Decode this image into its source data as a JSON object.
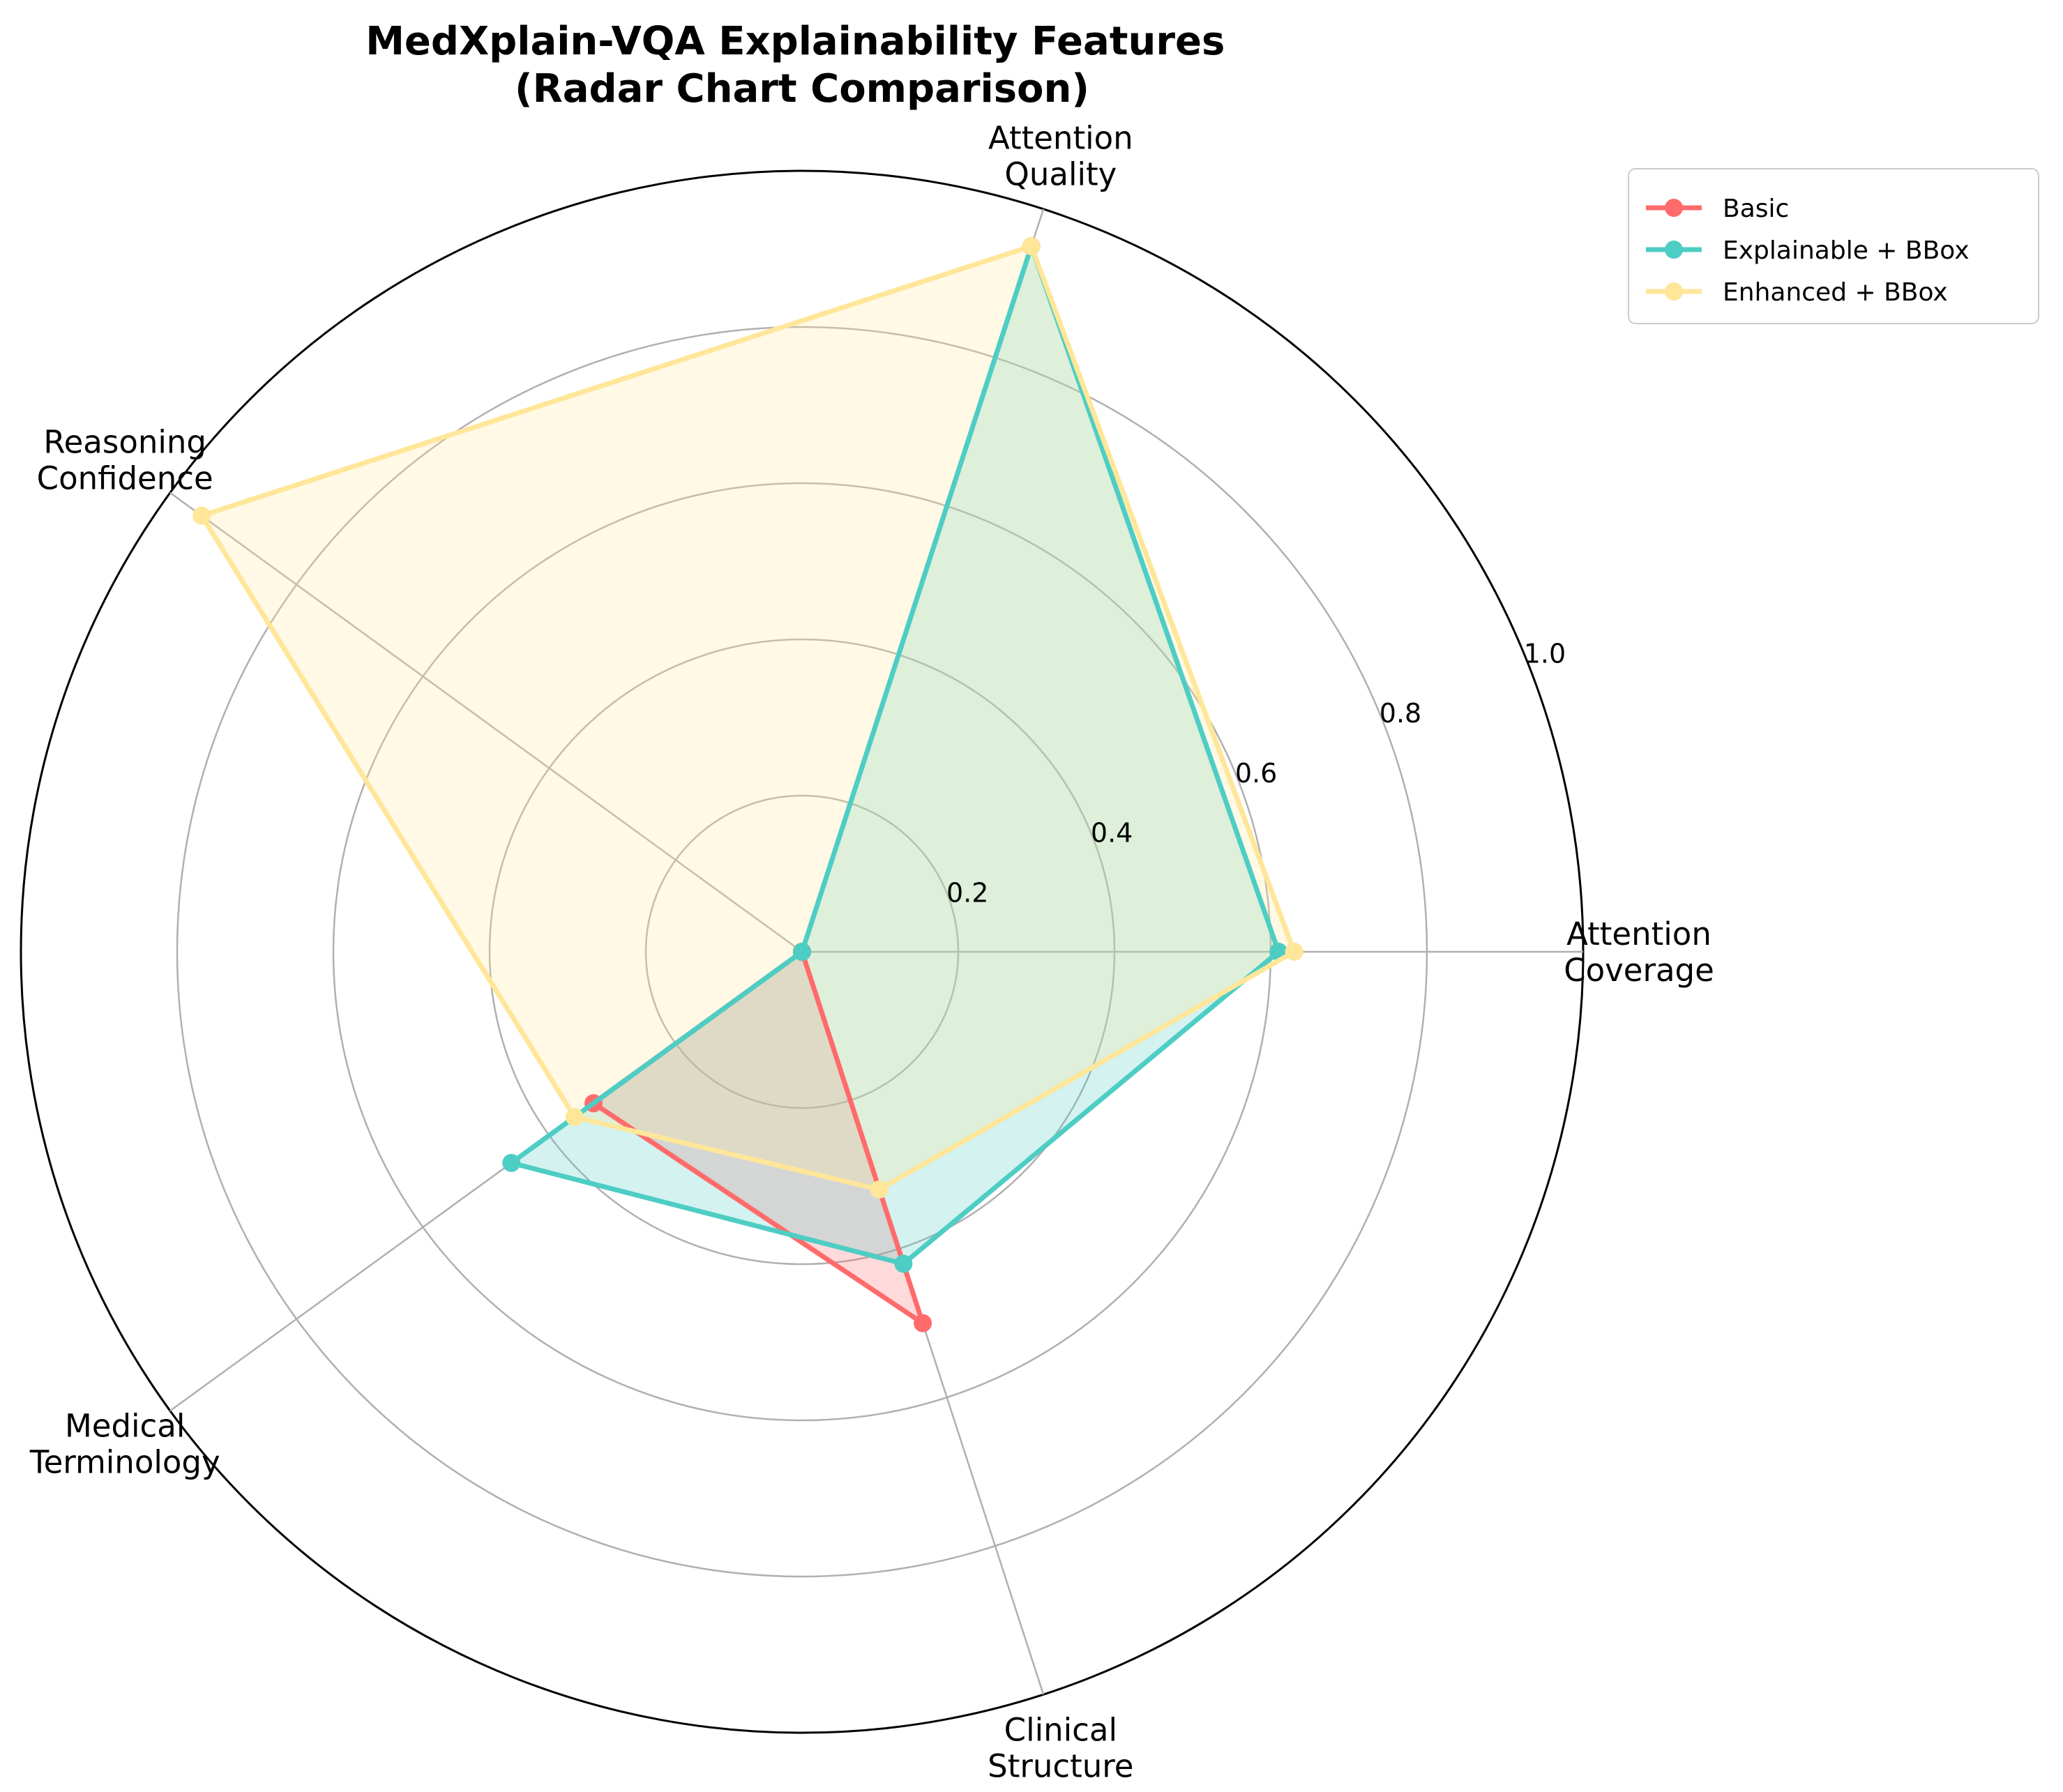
{
  "chart_data": {
    "type": "radar",
    "title": "MedXplain-VQA Explainability Features\n(Radar Chart Comparison)",
    "axes": [
      "Attention\nCoverage",
      "Attention\nQuality",
      "Reasoning\nConfidence",
      "Medical\nTerminology",
      "Clinical\nStructure"
    ],
    "rlim": [
      0,
      1.0
    ],
    "radial_ticks": [
      "0.2",
      "0.4",
      "0.6",
      "0.8",
      "1.0"
    ],
    "radial_tick_values": [
      0.2,
      0.4,
      0.6,
      0.8,
      1.0
    ],
    "grid": true,
    "legend_position": "top-right",
    "series": [
      {
        "name": "Basic",
        "color": "#ff6b6b",
        "values": [
          0.0,
          0.0,
          0.0,
          0.33,
          0.5
        ]
      },
      {
        "name": "Explainable + BBox",
        "color": "#4ecdc4",
        "values": [
          0.61,
          0.95,
          0.0,
          0.46,
          0.42
        ]
      },
      {
        "name": "Enhanced + BBox",
        "color": "#ffe699",
        "values": [
          0.63,
          0.95,
          0.95,
          0.36,
          0.32
        ]
      }
    ]
  }
}
